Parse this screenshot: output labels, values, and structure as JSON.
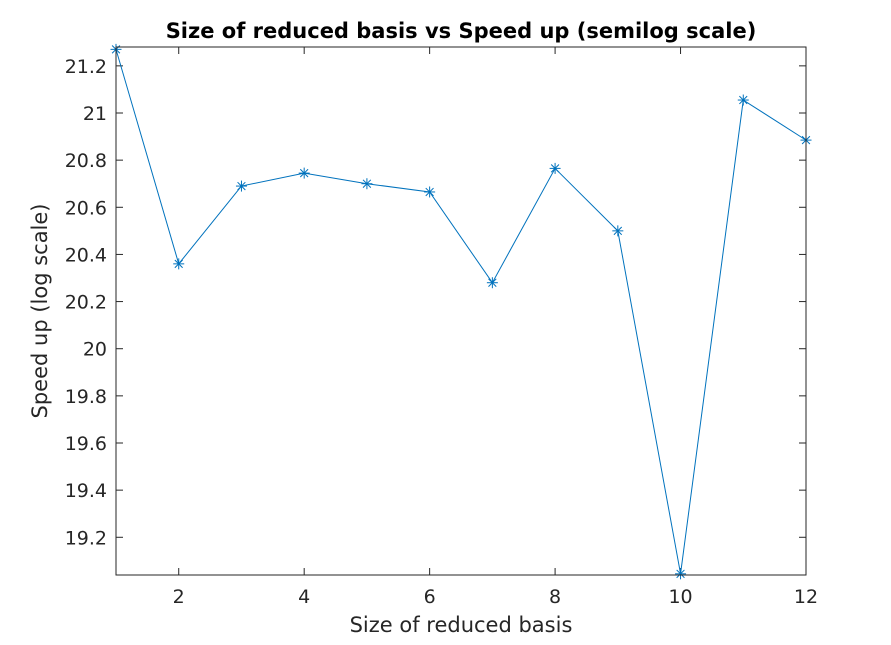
{
  "chart_data": {
    "type": "line",
    "title": "Size of reduced basis vs Speed up (semilog scale)",
    "xlabel": "Size of reduced basis",
    "ylabel": "Speed up (log scale)",
    "xlim": [
      1,
      12
    ],
    "ylim": [
      19.04,
      21.28
    ],
    "x_ticks": [
      2,
      4,
      6,
      8,
      10,
      12
    ],
    "y_ticks": [
      19.2,
      19.4,
      19.6,
      19.8,
      20,
      20.2,
      20.4,
      20.6,
      20.8,
      21,
      21.2
    ],
    "x_tick_labels": [
      "2",
      "4",
      "6",
      "8",
      "10",
      "12"
    ],
    "y_tick_labels": [
      "19.2",
      "19.4",
      "19.6",
      "19.8",
      "20",
      "20.2",
      "20.4",
      "20.6",
      "20.8",
      "21",
      "21.2"
    ],
    "grid": false,
    "marker": "asterisk",
    "line_color": "#0072bd",
    "series": [
      {
        "x": [
          1,
          2,
          3,
          4,
          5,
          6,
          7,
          8,
          9,
          10,
          11,
          12
        ],
        "values": [
          21.27,
          20.36,
          20.69,
          20.745,
          20.7,
          20.665,
          20.28,
          20.765,
          20.5,
          19.045,
          21.055,
          20.885
        ]
      }
    ]
  }
}
